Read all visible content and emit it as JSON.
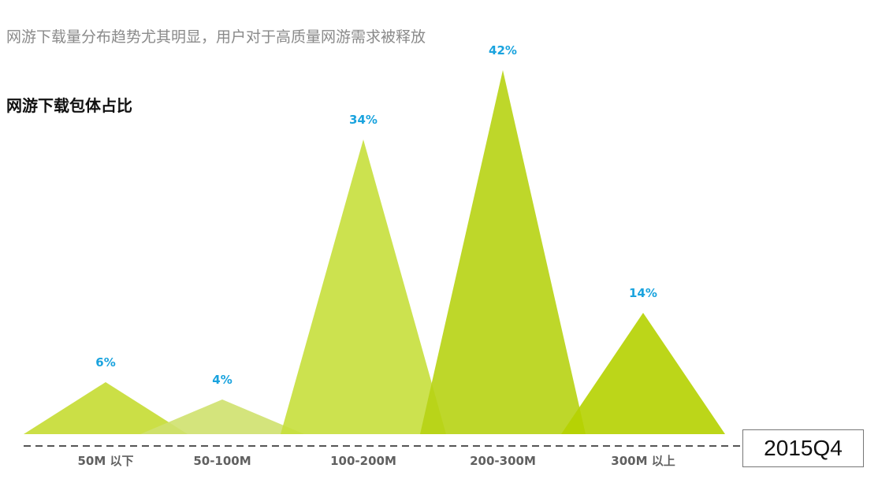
{
  "header": {
    "subtitle": "网游下载量分布趋势尤其明显，用户对于高质量网游需求被释放"
  },
  "chart_data": {
    "type": "area",
    "title": "网游下载包体占比",
    "categories": [
      "50M 以下",
      "50-100M",
      "100-200M",
      "200-300M",
      "300M 以上"
    ],
    "values": [
      6,
      4,
      34,
      42,
      14
    ],
    "value_labels": [
      "6%",
      "4%",
      "34%",
      "42%",
      "14%"
    ],
    "unit": "%",
    "grid": false,
    "legend": "none",
    "colors": {
      "peaks": [
        "#c5dc32",
        "#cfe16e",
        "#c6df3c",
        "#b7d313",
        "#b5d100"
      ],
      "value_label": "#1aa3de",
      "category_label": "#606060",
      "baseline": "#555555"
    }
  },
  "period_label": "2015Q4"
}
